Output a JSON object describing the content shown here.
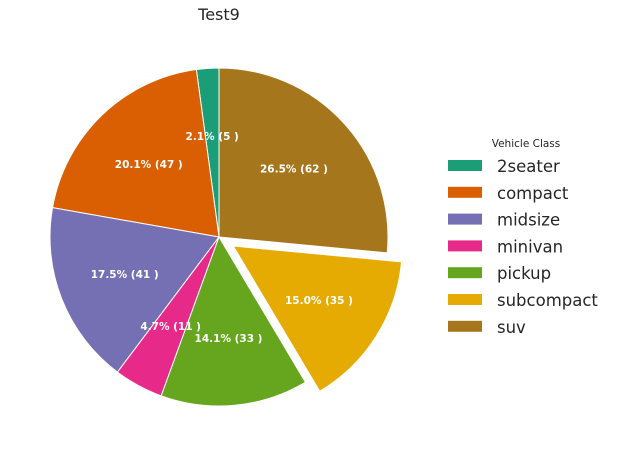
{
  "chart_data": {
    "type": "pie",
    "title": "Test9",
    "legend_title": "Vehicle Class",
    "legend_position": "right",
    "start_angle_deg": 90,
    "direction": "counterclockwise",
    "slices": [
      {
        "name": "2seater",
        "count": 5,
        "percent": 2.1,
        "label": "2.1% (5 )",
        "color": "#1b9e77",
        "explode": 0
      },
      {
        "name": "compact",
        "count": 47,
        "percent": 20.1,
        "label": "20.1% (47 )",
        "color": "#d95f02",
        "explode": 0
      },
      {
        "name": "midsize",
        "count": 41,
        "percent": 17.5,
        "label": "17.5% (41 )",
        "color": "#7570b3",
        "explode": 0
      },
      {
        "name": "minivan",
        "count": 11,
        "percent": 4.7,
        "label": "4.7% (11 )",
        "color": "#e7298a",
        "explode": 0
      },
      {
        "name": "pickup",
        "count": 33,
        "percent": 14.1,
        "label": "14.1% (33 )",
        "color": "#66a61e",
        "explode": 0
      },
      {
        "name": "subcompact",
        "count": 35,
        "percent": 15.0,
        "label": "15.0% (35 )",
        "color": "#e6ab02",
        "explode": 0.1
      },
      {
        "name": "suv",
        "count": 62,
        "percent": 26.5,
        "label": "26.5% (62 )",
        "color": "#a6761d",
        "explode": 0
      }
    ]
  }
}
